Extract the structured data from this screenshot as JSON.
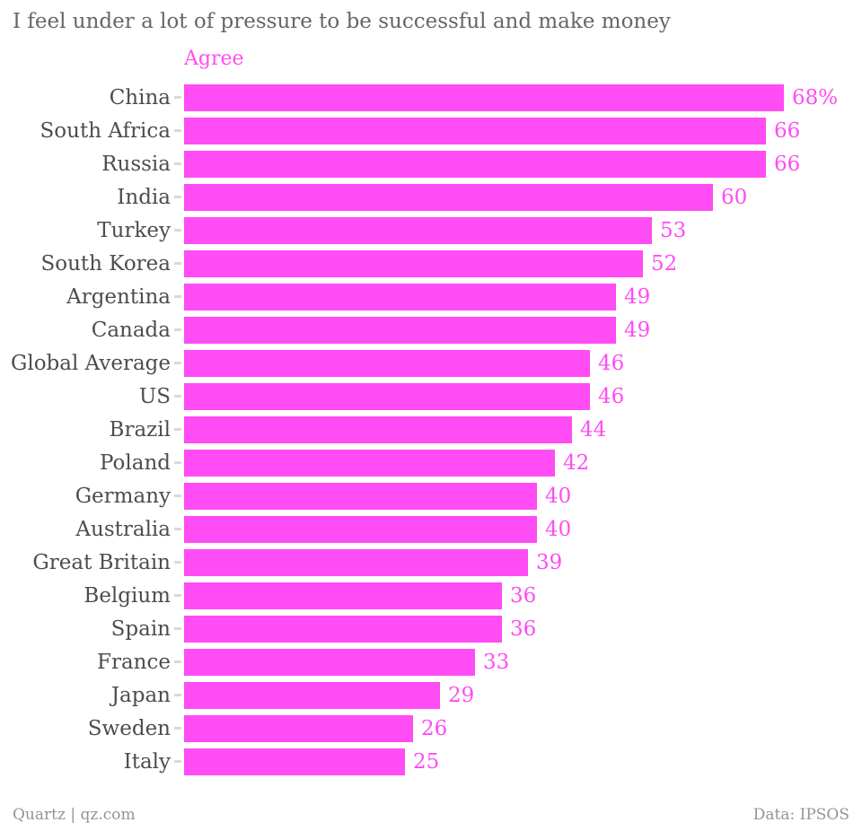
{
  "title": "I feel under a lot of pressure to be successful and make money",
  "legend_label": "Agree",
  "footer": {
    "credit": "Quartz | qz.com",
    "source": "Data: IPSOS"
  },
  "colors": {
    "bar": "#ff4cf4",
    "value_label": "#ff4cf4",
    "legend": "#ff4cf4",
    "country_label": "#4d4d4d",
    "title": "#666666",
    "footer_text": "#949494",
    "tick": "#d9d9d9",
    "background": "#ffffff"
  },
  "chart_data": {
    "type": "bar",
    "orientation": "horizontal",
    "title": "I feel under a lot of pressure to be successful and make money",
    "legend": [
      "Agree"
    ],
    "legend_position": "top-left of plot area",
    "grid": false,
    "xlim": [
      0,
      68
    ],
    "categories": [
      "China",
      "South Africa",
      "Russia",
      "India",
      "Turkey",
      "South Korea",
      "Argentina",
      "Canada",
      "Global Average",
      "US",
      "Brazil",
      "Poland",
      "Germany",
      "Australia",
      "Great Britain",
      "Belgium",
      "Spain",
      "France",
      "Japan",
      "Sweden",
      "Italy"
    ],
    "values": [
      68,
      66,
      66,
      60,
      53,
      52,
      49,
      49,
      46,
      46,
      44,
      42,
      40,
      40,
      39,
      36,
      36,
      33,
      29,
      26,
      25
    ],
    "value_labels": [
      "68%",
      "66",
      "66",
      "60",
      "53",
      "52",
      "49",
      "49",
      "46",
      "46",
      "44",
      "42",
      "40",
      "40",
      "39",
      "36",
      "36",
      "33",
      "29",
      "26",
      "25"
    ],
    "xlabel": "",
    "ylabel": "",
    "unit": "percent"
  }
}
